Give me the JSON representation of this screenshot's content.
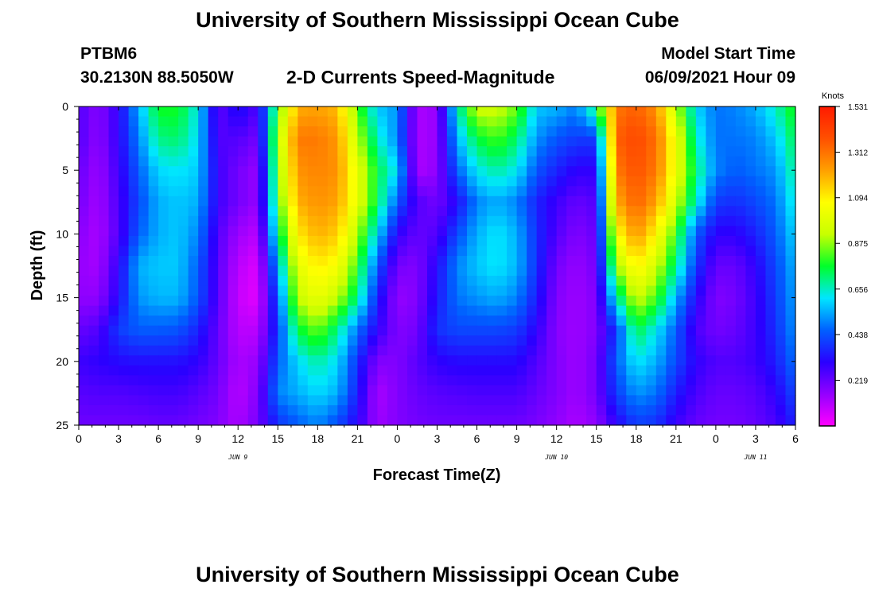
{
  "page": {
    "title_top": "University of Southern Mississippi Ocean Cube",
    "title_bottom": "University of Southern Mississippi Ocean Cube"
  },
  "header": {
    "station_id": "PTBM6",
    "station_coords": "30.2130N  88.5050W",
    "chart_title": "2-D Currents Speed-Magnitude",
    "model_label": "Model Start Time",
    "model_time": "06/09/2021 Hour 09"
  },
  "colors": {
    "colormap": [
      "#ff00ff",
      "#9400ff",
      "#2a00ff",
      "#0060ff",
      "#00e6ff",
      "#00ff2a",
      "#c8ff00",
      "#ffff00",
      "#ffa000",
      "#ff5000",
      "#ff1a00"
    ]
  },
  "chart_data": {
    "type": "heatmap",
    "title": "2-D Currents Speed-Magnitude",
    "xlabel": "Forecast Time(Z)",
    "ylabel": "Depth (ft)",
    "x_range_hours": [
      0,
      54
    ],
    "y_range": [
      0,
      25
    ],
    "y_reversed": true,
    "x_ticks": [
      {
        "h": 0,
        "label": "0"
      },
      {
        "h": 3,
        "label": "3"
      },
      {
        "h": 6,
        "label": "6"
      },
      {
        "h": 9,
        "label": "9"
      },
      {
        "h": 12,
        "label": "12"
      },
      {
        "h": 15,
        "label": "15"
      },
      {
        "h": 18,
        "label": "18"
      },
      {
        "h": 21,
        "label": "21"
      },
      {
        "h": 24,
        "label": "0"
      },
      {
        "h": 27,
        "label": "3"
      },
      {
        "h": 30,
        "label": "6"
      },
      {
        "h": 33,
        "label": "9"
      },
      {
        "h": 36,
        "label": "12"
      },
      {
        "h": 39,
        "label": "15"
      },
      {
        "h": 42,
        "label": "18"
      },
      {
        "h": 45,
        "label": "21"
      },
      {
        "h": 48,
        "label": "0"
      },
      {
        "h": 51,
        "label": "3"
      },
      {
        "h": 54,
        "label": "6"
      }
    ],
    "date_labels": [
      {
        "h": 12,
        "label": "JUN 9"
      },
      {
        "h": 36,
        "label": "JUN 10"
      },
      {
        "h": 51,
        "label": "JUN 11"
      }
    ],
    "y_ticks": [
      0,
      5,
      10,
      15,
      20,
      25
    ],
    "colorbar": {
      "label": "Knots",
      "min": 0,
      "max": 1.531,
      "ticks": [
        "1.531",
        "1.312",
        "1.094",
        "0.875",
        "0.656",
        "0.438",
        "0.219"
      ],
      "tick_values": [
        1.531,
        1.312,
        1.094,
        0.875,
        0.656,
        0.438,
        0.219
      ]
    },
    "depths_ft": [
      0,
      2.5,
      5,
      7.5,
      10,
      12.5,
      15,
      17.5,
      20,
      22.5,
      25
    ],
    "hours": [
      0,
      1.5,
      3,
      4.5,
      6,
      7.5,
      9,
      10.5,
      12,
      13.5,
      15,
      16.5,
      18,
      19.5,
      21,
      22.5,
      24,
      25.5,
      27,
      28.5,
      30,
      31.5,
      33,
      34.5,
      36,
      37.5,
      39,
      40.5,
      42,
      43.5,
      45,
      46.5,
      48,
      49.5,
      51,
      52.5,
      54
    ],
    "values_knots": [
      [
        0.25,
        0.17,
        0.3,
        0.55,
        0.78,
        0.78,
        0.62,
        0.22,
        0.35,
        0.25,
        0.8,
        1.2,
        1.22,
        1.18,
        0.82,
        0.58,
        0.52,
        0.12,
        0.15,
        0.65,
        0.95,
        0.95,
        0.85,
        0.58,
        0.56,
        0.5,
        0.75,
        1.3,
        1.35,
        1.25,
        0.92,
        0.6,
        0.48,
        0.5,
        0.55,
        0.66,
        0.8
      ],
      [
        0.25,
        0.16,
        0.3,
        0.5,
        0.7,
        0.72,
        0.6,
        0.25,
        0.25,
        0.2,
        0.9,
        1.3,
        1.3,
        1.24,
        0.92,
        0.66,
        0.5,
        0.12,
        0.15,
        0.55,
        0.75,
        0.82,
        0.72,
        0.52,
        0.44,
        0.4,
        0.4,
        1.35,
        1.4,
        1.32,
        1.02,
        0.66,
        0.48,
        0.48,
        0.5,
        0.58,
        0.75
      ],
      [
        0.22,
        0.14,
        0.28,
        0.45,
        0.6,
        0.62,
        0.58,
        0.28,
        0.2,
        0.15,
        0.85,
        1.25,
        1.28,
        1.25,
        1.0,
        0.75,
        0.6,
        0.12,
        0.16,
        0.45,
        0.62,
        0.68,
        0.62,
        0.44,
        0.36,
        0.3,
        0.3,
        1.3,
        1.38,
        1.3,
        1.02,
        0.72,
        0.5,
        0.45,
        0.48,
        0.52,
        0.7
      ],
      [
        0.2,
        0.13,
        0.26,
        0.42,
        0.55,
        0.58,
        0.55,
        0.28,
        0.2,
        0.15,
        0.8,
        1.2,
        1.25,
        1.22,
        1.0,
        0.74,
        0.45,
        0.25,
        0.2,
        0.32,
        0.5,
        0.55,
        0.5,
        0.36,
        0.28,
        0.22,
        0.25,
        1.2,
        1.35,
        1.22,
        0.95,
        0.65,
        0.4,
        0.38,
        0.42,
        0.48,
        0.65
      ],
      [
        0.17,
        0.12,
        0.25,
        0.45,
        0.55,
        0.58,
        0.5,
        0.25,
        0.14,
        0.1,
        0.7,
        1.1,
        1.2,
        1.15,
        0.9,
        0.6,
        0.3,
        0.22,
        0.25,
        0.42,
        0.55,
        0.62,
        0.55,
        0.38,
        0.25,
        0.18,
        0.22,
        1.05,
        1.25,
        1.08,
        0.8,
        0.45,
        0.3,
        0.3,
        0.36,
        0.45,
        0.6
      ],
      [
        0.15,
        0.13,
        0.3,
        0.55,
        0.58,
        0.58,
        0.45,
        0.24,
        0.1,
        0.05,
        0.55,
        1.0,
        1.1,
        1.05,
        0.8,
        0.45,
        0.2,
        0.18,
        0.32,
        0.5,
        0.58,
        0.62,
        0.56,
        0.38,
        0.2,
        0.15,
        0.2,
        0.88,
        1.1,
        0.95,
        0.7,
        0.4,
        0.22,
        0.22,
        0.3,
        0.42,
        0.56
      ],
      [
        0.16,
        0.16,
        0.32,
        0.52,
        0.56,
        0.56,
        0.44,
        0.24,
        0.08,
        0.04,
        0.45,
        0.92,
        1.02,
        0.92,
        0.7,
        0.36,
        0.15,
        0.18,
        0.34,
        0.48,
        0.52,
        0.55,
        0.5,
        0.35,
        0.18,
        0.14,
        0.18,
        0.65,
        0.95,
        0.82,
        0.55,
        0.32,
        0.18,
        0.2,
        0.28,
        0.4,
        0.54
      ],
      [
        0.22,
        0.25,
        0.4,
        0.45,
        0.45,
        0.44,
        0.36,
        0.22,
        0.1,
        0.1,
        0.4,
        0.75,
        0.85,
        0.7,
        0.48,
        0.3,
        0.18,
        0.2,
        0.38,
        0.42,
        0.42,
        0.42,
        0.4,
        0.3,
        0.17,
        0.14,
        0.18,
        0.4,
        0.75,
        0.62,
        0.45,
        0.26,
        0.2,
        0.22,
        0.28,
        0.38,
        0.52
      ],
      [
        0.28,
        0.3,
        0.32,
        0.33,
        0.33,
        0.33,
        0.3,
        0.22,
        0.12,
        0.15,
        0.45,
        0.6,
        0.68,
        0.6,
        0.38,
        0.18,
        0.18,
        0.24,
        0.3,
        0.32,
        0.32,
        0.32,
        0.32,
        0.25,
        0.18,
        0.14,
        0.2,
        0.45,
        0.62,
        0.55,
        0.42,
        0.3,
        0.25,
        0.25,
        0.28,
        0.35,
        0.48
      ],
      [
        0.24,
        0.25,
        0.25,
        0.26,
        0.27,
        0.27,
        0.24,
        0.2,
        0.1,
        0.18,
        0.5,
        0.55,
        0.6,
        0.55,
        0.35,
        0.12,
        0.18,
        0.22,
        0.24,
        0.25,
        0.26,
        0.26,
        0.26,
        0.22,
        0.18,
        0.14,
        0.2,
        0.4,
        0.52,
        0.48,
        0.35,
        0.26,
        0.22,
        0.22,
        0.24,
        0.3,
        0.42
      ],
      [
        0.21,
        0.21,
        0.21,
        0.21,
        0.22,
        0.22,
        0.2,
        0.18,
        0.12,
        0.2,
        0.38,
        0.45,
        0.5,
        0.42,
        0.3,
        0.14,
        0.18,
        0.2,
        0.21,
        0.21,
        0.21,
        0.21,
        0.21,
        0.19,
        0.16,
        0.12,
        0.16,
        0.3,
        0.4,
        0.38,
        0.28,
        0.22,
        0.2,
        0.2,
        0.22,
        0.26,
        0.36
      ]
    ]
  }
}
